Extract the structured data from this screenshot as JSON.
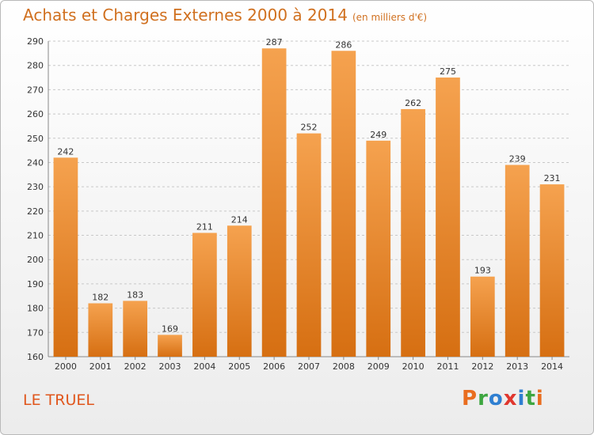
{
  "header": {
    "title": "Achats et Charges Externes 2000 à 2014",
    "unit": "(en milliers d'€)"
  },
  "footer": {
    "place": "LE TRUEL",
    "logo_text": "Proxiti",
    "logo_colors": [
      "#e96d1f",
      "#3da640",
      "#2f7fd1",
      "#e0372e",
      "#2f7fd1",
      "#3da640",
      "#e96d1f"
    ]
  },
  "colors": {
    "bar_top": "#f5a24f",
    "bar_bottom": "#d66f12",
    "title": "#d0701f",
    "place": "#e0561c",
    "grid": "#c8c8c8"
  },
  "chart_data": {
    "type": "bar",
    "title": "Achats et Charges Externes 2000 à 2014",
    "subtitle": "(en milliers d'€)",
    "xlabel": "",
    "ylabel": "",
    "categories": [
      "2000",
      "2001",
      "2002",
      "2003",
      "2004",
      "2005",
      "2006",
      "2007",
      "2008",
      "2009",
      "2010",
      "2011",
      "2012",
      "2013",
      "2014"
    ],
    "values": [
      242,
      182,
      183,
      169,
      211,
      214,
      287,
      252,
      286,
      249,
      262,
      275,
      193,
      239,
      231
    ],
    "ylim": [
      160,
      290
    ],
    "yticks": [
      160,
      170,
      180,
      190,
      200,
      210,
      220,
      230,
      240,
      250,
      260,
      270,
      280,
      290
    ],
    "grid": true,
    "legend": "none"
  }
}
